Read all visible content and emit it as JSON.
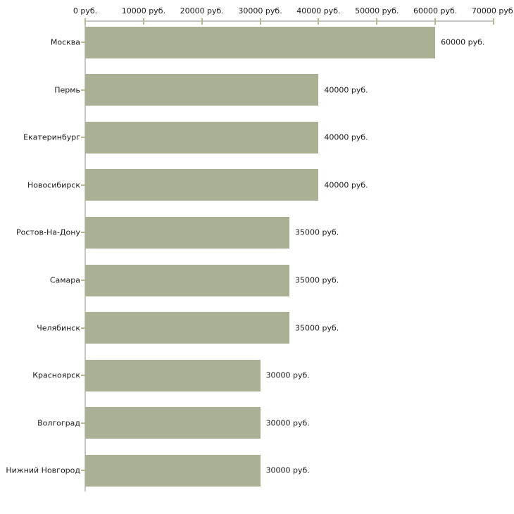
{
  "chart_data": {
    "type": "bar",
    "orientation": "horizontal",
    "title": "",
    "xlabel": "",
    "ylabel": "",
    "categories": [
      "Москва",
      "Пермь",
      "Екатеринбург",
      "Новосибирск",
      "Ростов-На-Дону",
      "Самара",
      "Челябинск",
      "Красноярск",
      "Волгоград",
      "Нижний Новгород"
    ],
    "values": [
      60000,
      40000,
      40000,
      40000,
      35000,
      35000,
      35000,
      30000,
      30000,
      30000
    ],
    "value_labels": [
      "60000 руб.",
      "40000 руб.",
      "40000 руб.",
      "40000 руб.",
      "35000 руб.",
      "35000 руб.",
      "35000 руб.",
      "30000 руб.",
      "30000 руб.",
      "30000 руб."
    ],
    "unit": "руб.",
    "xlim": [
      0,
      70000
    ],
    "x_tick_values": [
      0,
      10000,
      20000,
      30000,
      40000,
      50000,
      60000,
      70000
    ],
    "x_tick_labels": [
      "0 руб.",
      "10000 руб.",
      "20000 руб.",
      "30000 руб.",
      "40000 руб.",
      "50000 руб.",
      "60000 руб.",
      "70000 руб."
    ],
    "axis_position": "top",
    "value_label_position": "right-of-bar",
    "grid": false,
    "legend": false,
    "colors": {
      "bar": "#aab093",
      "axis_line": "#c6c6c6",
      "tick_mark": "#b8b893",
      "text": "#1a1a1a",
      "background": "#ffffff"
    }
  }
}
